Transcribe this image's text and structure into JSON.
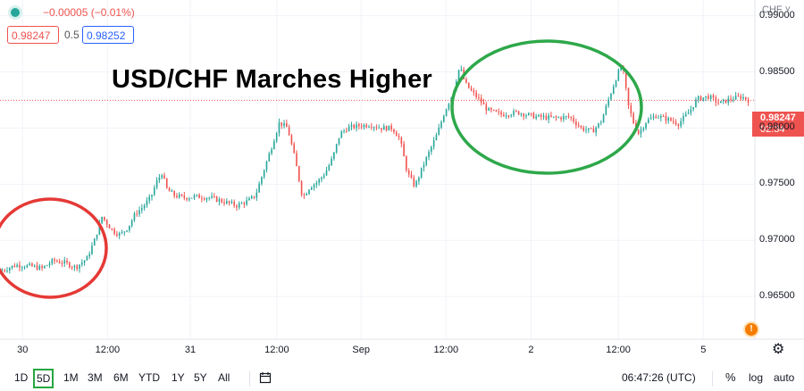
{
  "header": {
    "change_text": "−0.00005 (−0.01%)",
    "bid": "0.98247",
    "spread": "0.5",
    "ask": "0.98252",
    "currency": "CHF ˅"
  },
  "annotation_title": "USD/CHF Marches Higher",
  "price_tag": {
    "price": "0.98247",
    "countdown": "02:34"
  },
  "toolbar": {
    "timeframes": [
      "1D",
      "5D",
      "1M",
      "3M",
      "6M",
      "YTD",
      "1Y",
      "5Y",
      "All"
    ],
    "active": "5D",
    "time": "06:47:26 (UTC)",
    "percent": "%",
    "log": "log",
    "auto": "auto"
  },
  "colors": {
    "up": "#26a69a",
    "down": "#ef5350",
    "red_circle": "#e53935",
    "green_circle": "#2ea84a"
  },
  "icons": [
    "compare-icon",
    "settings-gear-icon",
    "alert-icon",
    "calendar-range-icon"
  ],
  "chart_data": {
    "type": "candlestick",
    "title": "USD/CHF Marches Higher",
    "y_ticks": [
      "0.99000",
      "0.98500",
      "0.98000",
      "0.97500",
      "0.97000",
      "0.96500"
    ],
    "x_ticks": [
      "30",
      "12:00",
      "31",
      "12:00",
      "Sep",
      "12:00",
      "2",
      "12:00",
      "5"
    ],
    "ylim": [
      0.9612,
      0.9914
    ],
    "last_price": 0.98247,
    "grid": true,
    "price_path": [
      [
        0.0,
        0.9673
      ],
      [
        0.02,
        0.9678
      ],
      [
        0.04,
        0.9677
      ],
      [
        0.055,
        0.9675
      ],
      [
        0.07,
        0.9682
      ],
      [
        0.085,
        0.968
      ],
      [
        0.1,
        0.9676
      ],
      [
        0.115,
        0.9684
      ],
      [
        0.125,
        0.97
      ],
      [
        0.135,
        0.9721
      ],
      [
        0.143,
        0.9714
      ],
      [
        0.15,
        0.9708
      ],
      [
        0.16,
        0.9705
      ],
      [
        0.17,
        0.9712
      ],
      [
        0.18,
        0.9724
      ],
      [
        0.19,
        0.973
      ],
      [
        0.2,
        0.9738
      ],
      [
        0.208,
        0.9752
      ],
      [
        0.215,
        0.976
      ],
      [
        0.222,
        0.9745
      ],
      [
        0.232,
        0.974
      ],
      [
        0.245,
        0.9738
      ],
      [
        0.26,
        0.9739
      ],
      [
        0.28,
        0.9738
      ],
      [
        0.3,
        0.9734
      ],
      [
        0.315,
        0.9731
      ],
      [
        0.33,
        0.9735
      ],
      [
        0.34,
        0.974
      ],
      [
        0.35,
        0.976
      ],
      [
        0.36,
        0.978
      ],
      [
        0.372,
        0.9805
      ],
      [
        0.383,
        0.98
      ],
      [
        0.393,
        0.9772
      ],
      [
        0.403,
        0.9738
      ],
      [
        0.413,
        0.9748
      ],
      [
        0.423,
        0.9752
      ],
      [
        0.433,
        0.976
      ],
      [
        0.443,
        0.9773
      ],
      [
        0.453,
        0.9795
      ],
      [
        0.463,
        0.98
      ],
      [
        0.478,
        0.9802
      ],
      [
        0.493,
        0.9803
      ],
      [
        0.508,
        0.98
      ],
      [
        0.523,
        0.98
      ],
      [
        0.533,
        0.979
      ],
      [
        0.543,
        0.976
      ],
      [
        0.553,
        0.9748
      ],
      [
        0.563,
        0.9765
      ],
      [
        0.573,
        0.978
      ],
      [
        0.583,
        0.9795
      ],
      [
        0.593,
        0.9815
      ],
      [
        0.603,
        0.983
      ],
      [
        0.613,
        0.9855
      ],
      [
        0.62,
        0.984
      ],
      [
        0.628,
        0.9833
      ],
      [
        0.638,
        0.9826
      ],
      [
        0.65,
        0.9816
      ],
      [
        0.668,
        0.9812
      ],
      [
        0.69,
        0.9814
      ],
      [
        0.715,
        0.981
      ],
      [
        0.74,
        0.9809
      ],
      [
        0.76,
        0.981
      ],
      [
        0.775,
        0.98
      ],
      [
        0.79,
        0.9797
      ],
      [
        0.802,
        0.9806
      ],
      [
        0.812,
        0.9826
      ],
      [
        0.822,
        0.9845
      ],
      [
        0.83,
        0.9857
      ],
      [
        0.838,
        0.982
      ],
      [
        0.845,
        0.9805
      ],
      [
        0.852,
        0.9795
      ],
      [
        0.862,
        0.9806
      ],
      [
        0.875,
        0.9811
      ],
      [
        0.89,
        0.9808
      ],
      [
        0.905,
        0.9804
      ],
      [
        0.918,
        0.9813
      ],
      [
        0.93,
        0.9826
      ],
      [
        0.945,
        0.9828
      ],
      [
        0.96,
        0.9822
      ],
      [
        0.975,
        0.9826
      ],
      [
        0.99,
        0.9828
      ],
      [
        1.0,
        0.9824
      ]
    ]
  }
}
